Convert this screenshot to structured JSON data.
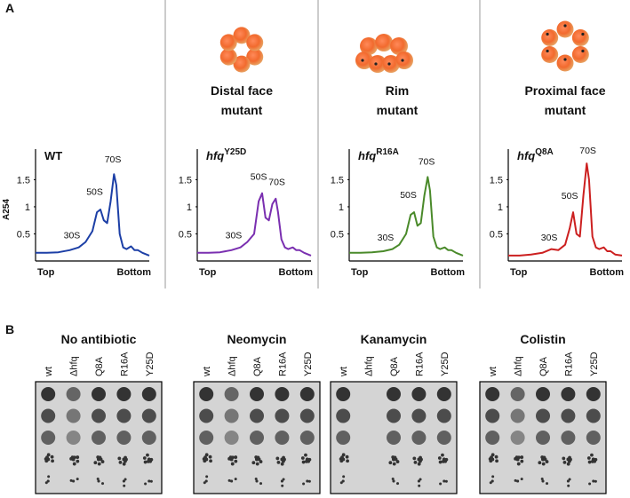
{
  "panel_a": {
    "label": "A"
  },
  "chart_data": [
    {
      "type": "line",
      "title": "WT",
      "ylabel": "A254",
      "x_start_label": "Top",
      "x_end_label": "Bottom",
      "color": "#1c3fa6",
      "xlim": [
        0,
        100
      ],
      "ylim": [
        0,
        1.9
      ],
      "yticks": [
        0.5,
        1,
        1.5
      ],
      "x": [
        0,
        10,
        20,
        30,
        38,
        44,
        50,
        54,
        57,
        60,
        63,
        66,
        69,
        71,
        74,
        77,
        80,
        84,
        87,
        90,
        94,
        100
      ],
      "values": [
        0.15,
        0.15,
        0.16,
        0.2,
        0.25,
        0.35,
        0.55,
        0.9,
        0.95,
        0.75,
        0.7,
        1.1,
        1.6,
        1.4,
        0.5,
        0.25,
        0.22,
        0.27,
        0.2,
        0.2,
        0.15,
        0.1
      ],
      "annotations": [
        {
          "text": "30S",
          "x": 32,
          "y": 0.42
        },
        {
          "text": "50S",
          "x": 52,
          "y": 1.22
        },
        {
          "text": "70S",
          "x": 68,
          "y": 1.82
        }
      ]
    },
    {
      "type": "line",
      "title": "hfq",
      "title_sup": "Y25D",
      "header_lines": [
        "Distal face",
        "mutant"
      ],
      "x_start_label": "Top",
      "x_end_label": "Bottom",
      "color": "#7a2fb0",
      "xlim": [
        0,
        100
      ],
      "ylim": [
        0,
        1.9
      ],
      "yticks": [
        0.5,
        1,
        1.5
      ],
      "x": [
        0,
        10,
        20,
        30,
        38,
        44,
        50,
        54,
        57,
        60,
        63,
        66,
        69,
        71,
        74,
        77,
        80,
        84,
        87,
        90,
        94,
        100
      ],
      "values": [
        0.15,
        0.15,
        0.16,
        0.2,
        0.25,
        0.35,
        0.5,
        1.1,
        1.25,
        0.8,
        0.75,
        1.05,
        1.15,
        0.9,
        0.4,
        0.25,
        0.22,
        0.25,
        0.2,
        0.2,
        0.15,
        0.1
      ],
      "annotations": [
        {
          "text": "30S",
          "x": 32,
          "y": 0.42
        },
        {
          "text": "50S",
          "x": 54,
          "y": 1.5
        },
        {
          "text": "70S",
          "x": 70,
          "y": 1.4
        }
      ]
    },
    {
      "type": "line",
      "title": "hfq",
      "title_sup": "R16A",
      "header_lines": [
        "Rim",
        "mutant"
      ],
      "x_start_label": "Top",
      "x_end_label": "Bottom",
      "color": "#4a8a2a",
      "xlim": [
        0,
        100
      ],
      "ylim": [
        0,
        1.9
      ],
      "yticks": [
        0.5,
        1,
        1.5
      ],
      "x": [
        0,
        10,
        20,
        30,
        38,
        44,
        50,
        54,
        57,
        60,
        63,
        66,
        69,
        71,
        74,
        77,
        80,
        84,
        87,
        90,
        94,
        100
      ],
      "values": [
        0.15,
        0.15,
        0.16,
        0.18,
        0.22,
        0.3,
        0.5,
        0.85,
        0.9,
        0.65,
        0.7,
        1.2,
        1.55,
        1.3,
        0.45,
        0.25,
        0.22,
        0.25,
        0.2,
        0.2,
        0.15,
        0.1
      ],
      "annotations": [
        {
          "text": "30S",
          "x": 32,
          "y": 0.38
        },
        {
          "text": "50S",
          "x": 52,
          "y": 1.16
        },
        {
          "text": "70S",
          "x": 68,
          "y": 1.78
        }
      ]
    },
    {
      "type": "line",
      "title": "hfq",
      "title_sup": "Q8A",
      "header_lines": [
        "Proximal face",
        "mutant"
      ],
      "x_start_label": "Top",
      "x_end_label": "Bottom",
      "color": "#cc2020",
      "xlim": [
        0,
        100
      ],
      "ylim": [
        0,
        1.9
      ],
      "yticks": [
        0.5,
        1,
        1.5
      ],
      "x": [
        0,
        10,
        20,
        30,
        38,
        44,
        50,
        54,
        57,
        60,
        63,
        66,
        69,
        71,
        74,
        77,
        80,
        84,
        87,
        90,
        94,
        100
      ],
      "values": [
        0.1,
        0.1,
        0.12,
        0.15,
        0.22,
        0.2,
        0.3,
        0.6,
        0.9,
        0.5,
        0.45,
        1.2,
        1.8,
        1.5,
        0.45,
        0.25,
        0.22,
        0.25,
        0.18,
        0.18,
        0.12,
        0.1
      ],
      "annotations": [
        {
          "text": "30S",
          "x": 36,
          "y": 0.38
        },
        {
          "text": "50S",
          "x": 54,
          "y": 1.15
        },
        {
          "text": "70S",
          "x": 70,
          "y": 1.98
        }
      ]
    }
  ],
  "panel_b": {
    "label": "B",
    "plates": [
      {
        "title": "No antibiotic",
        "strains": [
          "wt",
          "Δhfq",
          "Q8A",
          "R16A",
          "Y25D"
        ]
      },
      {
        "title": "Neomycin",
        "strains": [
          "wt",
          "Δhfq",
          "Q8A",
          "R16A",
          "Y25D"
        ]
      },
      {
        "title": "Kanamycin",
        "strains": [
          "wt",
          "Δhfq",
          "Q8A",
          "R16A",
          "Y25D"
        ],
        "no_growth": [
          1
        ]
      },
      {
        "title": "Colistin",
        "strains": [
          "wt",
          "Δhfq",
          "Q8A",
          "R16A",
          "Y25D"
        ]
      }
    ]
  }
}
